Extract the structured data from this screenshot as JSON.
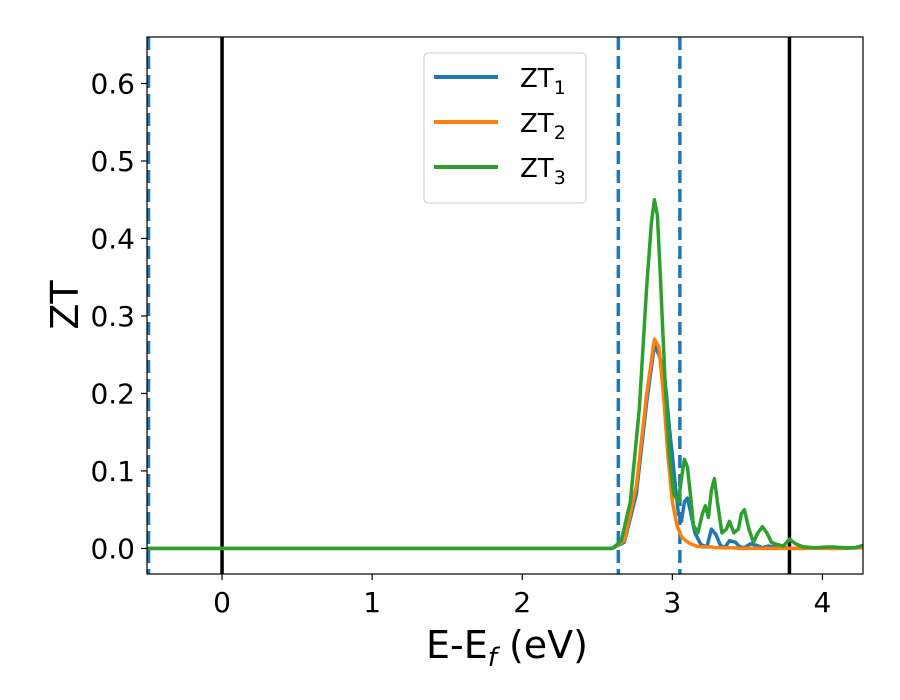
{
  "chart_data": {
    "type": "line",
    "xlabel": "E-E",
    "xlabel_sub": "f",
    "xlabel_unit": " (eV)",
    "ylabel": "ZT",
    "xlim": [
      -0.5,
      4.27
    ],
    "ylim": [
      -0.033,
      0.66
    ],
    "xticks": [
      0,
      1,
      2,
      3,
      4
    ],
    "yticks": [
      0.0,
      0.1,
      0.2,
      0.3,
      0.4,
      0.5,
      0.6
    ],
    "ytick_labels": [
      "0.0",
      "0.1",
      "0.2",
      "0.3",
      "0.4",
      "0.5",
      "0.6"
    ],
    "grid": false,
    "legend_position": "upper center",
    "vlines": [
      {
        "x": -0.49,
        "style": "dashed",
        "color": "#1f77b4"
      },
      {
        "x": 0.0,
        "style": "solid",
        "color": "#000000"
      },
      {
        "x": 2.64,
        "style": "dashed",
        "color": "#1f77b4"
      },
      {
        "x": 3.05,
        "style": "dashed",
        "color": "#1f77b4"
      },
      {
        "x": 3.78,
        "style": "solid",
        "color": "#000000"
      }
    ],
    "series": [
      {
        "name": "ZT",
        "sub": "1",
        "color": "#1f77b4",
        "x": [
          -0.5,
          2.6,
          2.68,
          2.76,
          2.83,
          2.88,
          2.91,
          2.94,
          2.96,
          2.98,
          3.0,
          3.02,
          3.04,
          3.06,
          3.08,
          3.1,
          3.12,
          3.15,
          3.19,
          3.23,
          3.26,
          3.29,
          3.32,
          3.35,
          3.38,
          3.42,
          3.45,
          3.48,
          3.52,
          3.56,
          3.6,
          3.64,
          3.69,
          3.75,
          3.8,
          3.87,
          3.95,
          4.05,
          4.15,
          4.22,
          4.27
        ],
        "y": [
          0.0,
          0.0,
          0.008,
          0.07,
          0.19,
          0.262,
          0.25,
          0.23,
          0.2,
          0.155,
          0.12,
          0.08,
          0.045,
          0.035,
          0.06,
          0.065,
          0.048,
          0.02,
          0.005,
          0.002,
          0.025,
          0.018,
          0.004,
          0.001,
          0.01,
          0.008,
          0.002,
          0.001,
          0.006,
          0.004,
          0.001,
          0.003,
          0.002,
          0.001,
          0.0,
          0.0,
          0.001,
          0.0,
          0.0,
          0.001,
          0.003
        ]
      },
      {
        "name": "ZT",
        "sub": "2",
        "color": "#ff7f0e",
        "x": [
          -0.5,
          2.6,
          2.68,
          2.76,
          2.83,
          2.88,
          2.91,
          2.94,
          2.97,
          3.0,
          3.03,
          3.06,
          3.09,
          3.12,
          3.16,
          3.2,
          3.25,
          3.3,
          3.35,
          3.4,
          3.45,
          3.5,
          3.58,
          3.7,
          3.8,
          3.95,
          4.1,
          4.27
        ],
        "y": [
          0.0,
          0.0,
          0.01,
          0.08,
          0.2,
          0.27,
          0.26,
          0.2,
          0.12,
          0.06,
          0.03,
          0.015,
          0.01,
          0.006,
          0.003,
          0.002,
          0.002,
          0.001,
          0.001,
          0.001,
          0.0,
          0.0,
          0.0,
          0.0,
          0.0,
          0.0,
          0.0,
          0.001
        ]
      },
      {
        "name": "ZT",
        "sub": "3",
        "color": "#2ca02c",
        "x": [
          -0.5,
          2.6,
          2.66,
          2.72,
          2.78,
          2.83,
          2.86,
          2.88,
          2.9,
          2.92,
          2.95,
          2.98,
          3.01,
          3.04,
          3.06,
          3.08,
          3.1,
          3.12,
          3.14,
          3.17,
          3.2,
          3.22,
          3.24,
          3.26,
          3.28,
          3.3,
          3.33,
          3.36,
          3.38,
          3.41,
          3.44,
          3.46,
          3.48,
          3.51,
          3.54,
          3.57,
          3.6,
          3.63,
          3.66,
          3.7,
          3.74,
          3.78,
          3.82,
          3.87,
          3.95,
          4.05,
          4.15,
          4.22,
          4.27
        ],
        "y": [
          0.0,
          0.0,
          0.01,
          0.06,
          0.18,
          0.34,
          0.42,
          0.45,
          0.43,
          0.35,
          0.22,
          0.12,
          0.07,
          0.06,
          0.09,
          0.115,
          0.105,
          0.07,
          0.03,
          0.02,
          0.045,
          0.055,
          0.04,
          0.075,
          0.09,
          0.06,
          0.02,
          0.025,
          0.035,
          0.02,
          0.025,
          0.045,
          0.05,
          0.025,
          0.008,
          0.02,
          0.028,
          0.02,
          0.008,
          0.005,
          0.003,
          0.012,
          0.006,
          0.002,
          0.001,
          0.002,
          0.001,
          0.001,
          0.004
        ]
      }
    ]
  }
}
